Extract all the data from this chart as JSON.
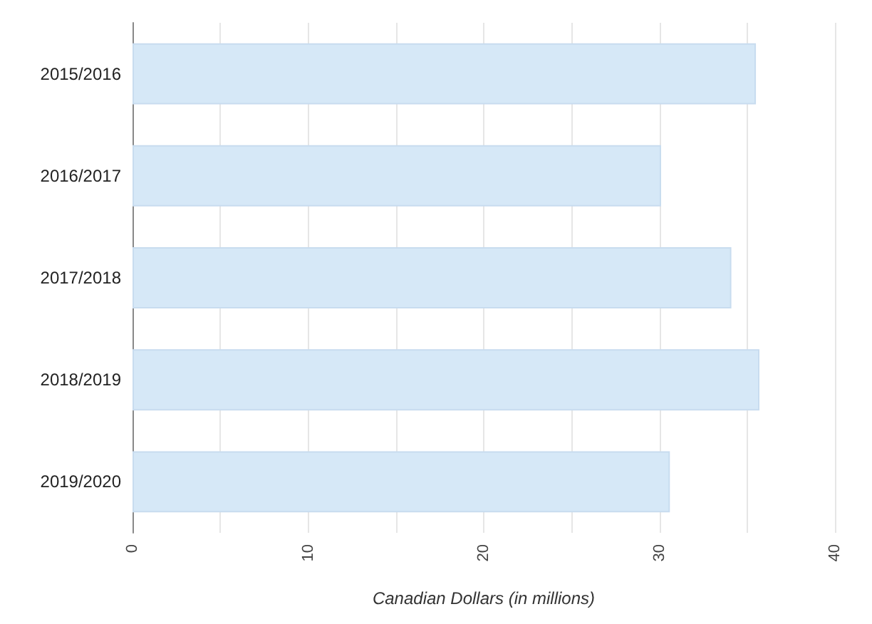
{
  "chart_data": {
    "type": "bar",
    "orientation": "horizontal",
    "xlabel": "Canadian Dollars (in millions)",
    "categories": [
      "2015/2016",
      "2016/2017",
      "2017/2018",
      "2018/2019",
      "2019/2020"
    ],
    "values": [
      35.5,
      30.1,
      34.1,
      35.7,
      30.6
    ],
    "color": "#d6e8f7",
    "xlim": [
      0,
      40
    ],
    "xticks": [
      0,
      {
        "value": 5,
        "label": null
      },
      10,
      {
        "value": 15,
        "label": null
      },
      20,
      {
        "value": 25,
        "label": null
      },
      30,
      {
        "value": 35,
        "label": null
      },
      40
    ],
    "grid": "x"
  }
}
